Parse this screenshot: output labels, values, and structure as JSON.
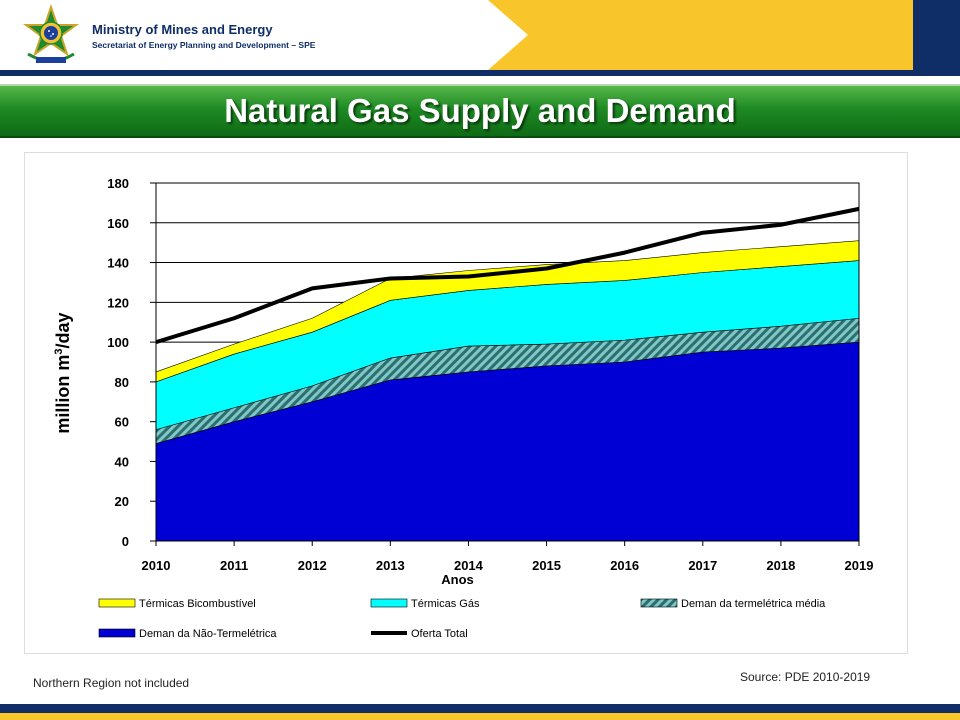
{
  "header": {
    "ministry": "Ministry of Mines and Energy",
    "secretariat": "Secretariat of Energy Planning and Development – SPE"
  },
  "slide_title": "Natural Gas Supply and Demand",
  "chart_data": {
    "type": "area",
    "stacked": true,
    "x": [
      2010,
      2011,
      2012,
      2013,
      2014,
      2015,
      2016,
      2017,
      2018,
      2019
    ],
    "series": [
      {
        "name": "Demanda Não-Termelétrica",
        "color": "#0000d4",
        "values": [
          49,
          60,
          70,
          81,
          85,
          88,
          90,
          95,
          97,
          100
        ]
      },
      {
        "name": "Demanda termelétrica média",
        "color": "#2e8b8b",
        "pattern": "hatch",
        "values": [
          7,
          7,
          8,
          11,
          13,
          11,
          11,
          10,
          11,
          12
        ]
      },
      {
        "name": "Térmicas Gás",
        "color": "#00ffff",
        "values": [
          24,
          27,
          27,
          29,
          28,
          30,
          30,
          30,
          30,
          29
        ]
      },
      {
        "name": "Térmicas Bicombustível",
        "color": "#ffff00",
        "values": [
          5,
          5,
          7,
          11,
          10,
          10,
          10,
          10,
          10,
          10
        ]
      },
      {
        "name": "Oferta Total",
        "type": "line",
        "color": "#000000",
        "values": [
          100,
          112,
          127,
          132,
          133,
          137,
          145,
          155,
          159,
          167
        ]
      }
    ],
    "legend_order": [
      "Térmicas Bicombustível",
      "Térmicas Gás",
      "Demanda termelétrica média",
      "Demanda Não-Termelétrica",
      "Oferta Total"
    ],
    "legend_labels": {
      "Térmicas Bicombustível": "Térmicas Bicombustível",
      "Térmicas Gás": "Térmicas  Gás",
      "Demanda termelétrica média": "Deman da termelétrica média",
      "Demanda Não-Termelétrica": "Deman da Não-Termelétrica",
      "Oferta Total": "Oferta Total"
    },
    "yticks": [
      0,
      20,
      40,
      60,
      80,
      100,
      120,
      140,
      160,
      180
    ],
    "ylim": [
      0,
      180
    ],
    "xlabel": "Anos",
    "ylabel_prefix": "million m",
    "ylabel_sup": "3",
    "ylabel_suffix": "/day",
    "grid": "horizontal",
    "legend_position": "bottom"
  },
  "footer": {
    "note": "Northern Region not included",
    "source": "Source: PDE 2010-2019"
  }
}
